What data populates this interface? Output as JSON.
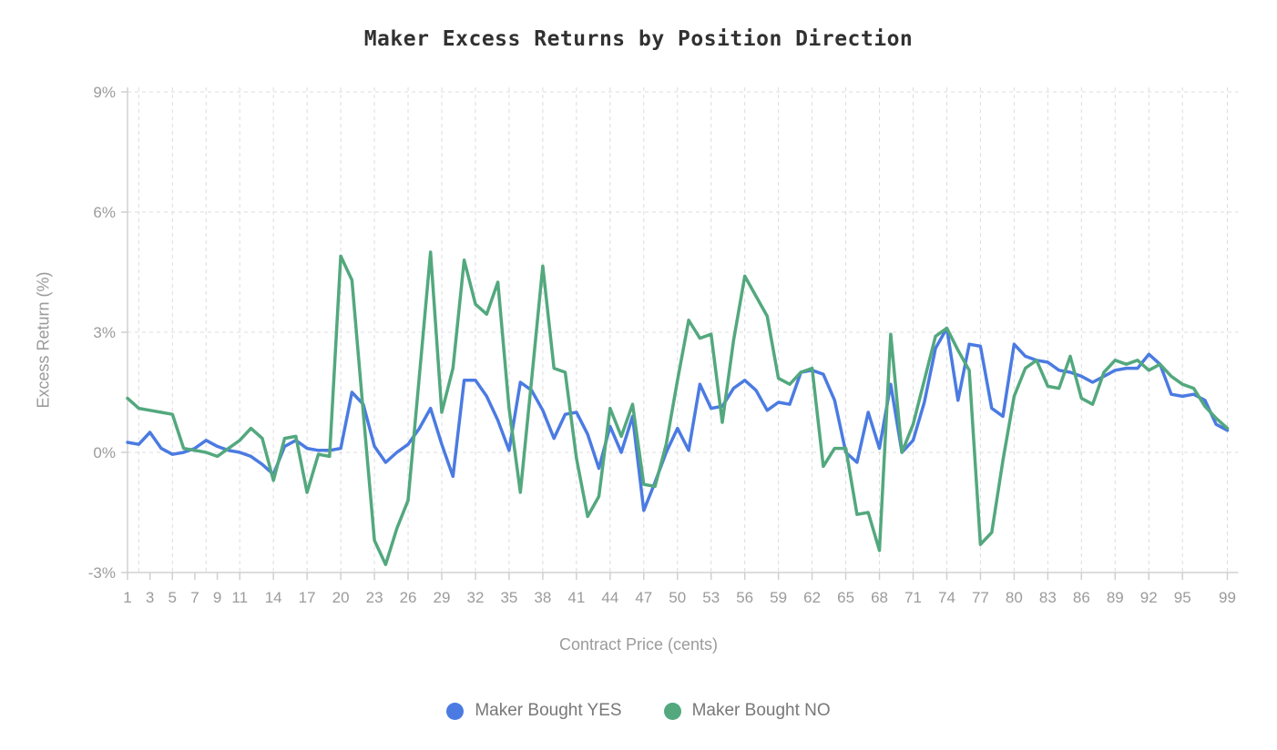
{
  "title": "Maker Excess Returns by Position Direction",
  "chart_data": {
    "type": "line",
    "title": "Maker Excess Returns by Position Direction",
    "xlabel": "Contract Price (cents)",
    "ylabel": "Excess Return (%)",
    "ylim": [
      -3,
      9
    ],
    "grid": "dashed",
    "legend_position": "bottom",
    "y_ticks": [
      {
        "value": 9,
        "label": "9%"
      },
      {
        "value": 6,
        "label": "6%"
      },
      {
        "value": 3,
        "label": "3%"
      },
      {
        "value": 0,
        "label": "0%"
      },
      {
        "value": -3,
        "label": "-3%"
      }
    ],
    "x_tick_labels": [
      1,
      3,
      5,
      7,
      9,
      11,
      14,
      17,
      20,
      23,
      26,
      29,
      32,
      35,
      38,
      41,
      44,
      47,
      50,
      53,
      56,
      59,
      62,
      65,
      68,
      71,
      74,
      77,
      80,
      83,
      86,
      89,
      92,
      95,
      99
    ],
    "x_gridlines": [
      2,
      5,
      8,
      11,
      14,
      17,
      20,
      23,
      26,
      29,
      32,
      35,
      38,
      41,
      44,
      47,
      50,
      53,
      56,
      59,
      62,
      65,
      68,
      71,
      74,
      77,
      80,
      83,
      86,
      89,
      92,
      95,
      99
    ],
    "x": [
      1,
      2,
      3,
      4,
      5,
      6,
      7,
      8,
      9,
      10,
      11,
      12,
      13,
      14,
      15,
      16,
      17,
      18,
      19,
      20,
      21,
      22,
      23,
      24,
      25,
      26,
      27,
      28,
      29,
      30,
      31,
      32,
      33,
      34,
      35,
      36,
      37,
      38,
      39,
      40,
      41,
      42,
      43,
      44,
      45,
      46,
      47,
      48,
      49,
      50,
      51,
      52,
      53,
      54,
      55,
      56,
      57,
      58,
      59,
      60,
      61,
      62,
      63,
      64,
      65,
      66,
      67,
      68,
      69,
      70,
      71,
      72,
      73,
      74,
      75,
      76,
      77,
      78,
      79,
      80,
      81,
      82,
      83,
      84,
      85,
      86,
      87,
      88,
      89,
      90,
      91,
      92,
      93,
      94,
      95,
      96,
      97,
      98,
      99
    ],
    "series": [
      {
        "name": "Maker Bought YES",
        "color": "#4b7be2",
        "values": [
          0.25,
          0.2,
          0.5,
          0.1,
          -0.05,
          0,
          0.1,
          0.3,
          0.15,
          0.05,
          0,
          -0.1,
          -0.3,
          -0.55,
          0.15,
          0.3,
          0.1,
          0.05,
          0.05,
          0.1,
          1.5,
          1.2,
          0.15,
          -0.25,
          0,
          0.2,
          0.6,
          1.1,
          0.2,
          -0.6,
          1.8,
          1.8,
          1.4,
          0.8,
          0.05,
          1.75,
          1.55,
          1.05,
          0.35,
          0.95,
          1,
          0.45,
          -0.4,
          0.65,
          0,
          0.9,
          -1.45,
          -0.75,
          0,
          0.6,
          0.05,
          1.7,
          1.1,
          1.15,
          1.6,
          1.8,
          1.55,
          1.05,
          1.25,
          1.2,
          2,
          2.05,
          1.95,
          1.3,
          0,
          -0.25,
          1,
          0.1,
          1.7,
          0,
          0.3,
          1.25,
          2.6,
          3.1,
          1.3,
          2.7,
          2.65,
          1.1,
          0.9,
          2.7,
          2.4,
          2.3,
          2.25,
          2.05,
          2,
          1.9,
          1.75,
          1.9,
          2.05,
          2.1,
          2.1,
          2.45,
          2.2,
          1.45,
          1.4,
          1.45,
          1.3,
          0.7,
          0.55
        ]
      },
      {
        "name": "Maker Bought NO",
        "color": "#53a87e",
        "values": [
          1.35,
          1.1,
          1.05,
          1,
          0.95,
          0.1,
          0.05,
          0,
          -0.1,
          0.1,
          0.3,
          0.6,
          0.35,
          -0.7,
          0.35,
          0.4,
          -1,
          -0.05,
          -0.1,
          4.9,
          4.3,
          1,
          -2.2,
          -2.8,
          -1.9,
          -1.2,
          1.9,
          5,
          1,
          2.1,
          4.8,
          3.7,
          3.45,
          4.25,
          1.1,
          -1,
          1.8,
          4.65,
          2.1,
          2,
          -0.15,
          -1.6,
          -1.1,
          1.1,
          0.4,
          1.2,
          -0.8,
          -0.85,
          0.2,
          1.8,
          3.3,
          2.85,
          2.95,
          0.75,
          2.8,
          4.4,
          3.9,
          3.4,
          1.85,
          1.7,
          2,
          2.1,
          -0.35,
          0.1,
          0.1,
          -1.55,
          -1.5,
          -2.45,
          2.95,
          0,
          0.7,
          1.8,
          2.9,
          3.1,
          2.55,
          2.05,
          -2.3,
          -2,
          -0.2,
          1.4,
          2.1,
          2.3,
          1.65,
          1.6,
          2.4,
          1.35,
          1.2,
          2,
          2.3,
          2.2,
          2.3,
          2.05,
          2.2,
          1.9,
          1.7,
          1.6,
          1.15,
          0.85,
          0.6
        ]
      }
    ]
  },
  "legend": {
    "items": [
      {
        "label": "Maker Bought YES",
        "color": "#4b7be2"
      },
      {
        "label": "Maker Bought NO",
        "color": "#53a87e"
      }
    ]
  }
}
